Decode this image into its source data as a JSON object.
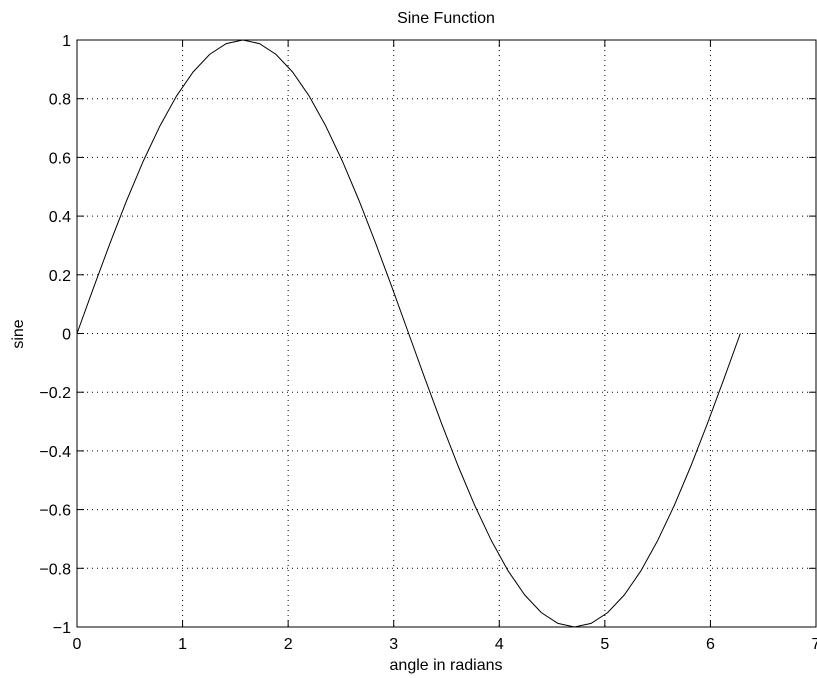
{
  "chart_data": {
    "type": "line",
    "title": "Sine Function",
    "xlabel": "angle in radians",
    "ylabel": "sine",
    "xlim": [
      0,
      7
    ],
    "ylim": [
      -1,
      1
    ],
    "grid": true,
    "x_ticks": [
      "0",
      "1",
      "2",
      "3",
      "4",
      "5",
      "6",
      "7"
    ],
    "y_ticks": [
      "1",
      "0.8",
      "0.6",
      "0.4",
      "0.2",
      "0",
      "−0.2",
      "−0.4",
      "−0.6",
      "−0.8",
      "−1"
    ],
    "series": [
      {
        "x": [
          0,
          0.1571,
          0.3142,
          0.4712,
          0.6283,
          0.7854,
          0.9425,
          1.0996,
          1.2566,
          1.4137,
          1.5708,
          1.7279,
          1.885,
          2.042,
          2.1991,
          2.3562,
          2.5133,
          2.6704,
          2.8274,
          2.9845,
          3.1416,
          3.2987,
          3.4558,
          3.6128,
          3.7699,
          3.927,
          4.0841,
          4.2412,
          4.3982,
          4.5553,
          4.7124,
          4.8695,
          5.0265,
          5.1836,
          5.3407,
          5.4978,
          5.6549,
          5.8119,
          5.969,
          6.1261,
          6.2832
        ],
        "y": [
          0,
          0.1564,
          0.309,
          0.454,
          0.5878,
          0.7071,
          0.809,
          0.891,
          0.9511,
          0.9877,
          1,
          0.9877,
          0.9511,
          0.891,
          0.809,
          0.7071,
          0.5878,
          0.454,
          0.309,
          0.1564,
          0,
          -0.1564,
          -0.309,
          -0.454,
          -0.5878,
          -0.7071,
          -0.809,
          -0.891,
          -0.9511,
          -0.9877,
          -1,
          -0.9877,
          -0.9511,
          -0.891,
          -0.809,
          -0.7071,
          -0.5878,
          -0.454,
          -0.309,
          -0.1564,
          0
        ]
      }
    ]
  }
}
